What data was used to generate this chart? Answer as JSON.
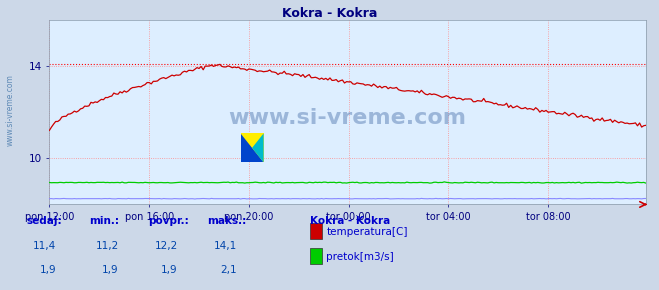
{
  "title": "Kokra - Kokra",
  "title_color": "#000080",
  "bg_color": "#ccd8e8",
  "plot_bg_color": "#ddeeff",
  "grid_color": "#ff8888",
  "text_color": "#0000aa",
  "watermark_text": "www.si-vreme.com",
  "watermark_color": "#6688bb",
  "xlabel_color": "#000080",
  "ylabel_color": "#000080",
  "xlim": [
    0,
    287
  ],
  "ylim_temp": [
    8.0,
    16.0
  ],
  "ylim_flow": [
    0.0,
    16.0
  ],
  "yticks_temp": [
    10,
    14
  ],
  "xtick_labels": [
    "pon 12:00",
    "pon 16:00",
    "pon 20:00",
    "tor 00:00",
    "tor 04:00",
    "tor 08:00"
  ],
  "xtick_positions": [
    0,
    48,
    96,
    144,
    192,
    240
  ],
  "temp_color": "#cc0000",
  "flow_color": "#00cc00",
  "height_color": "#8888ff",
  "max_line_color": "#ff0000",
  "max_temp": 14.1,
  "footer_label_color": "#0000cc",
  "footer_value_color": "#0044aa",
  "legend_title": "Kokra - Kokra",
  "legend_items": [
    "temperatura[C]",
    "pretok[m3/s]"
  ],
  "legend_colors": [
    "#cc0000",
    "#00cc00"
  ],
  "stats_headers": [
    "sedaj:",
    "min.:",
    "povpr.:",
    "maks.:"
  ],
  "stats_temp": [
    "11,4",
    "11,2",
    "12,2",
    "14,1"
  ],
  "stats_flow": [
    "1,9",
    "1,9",
    "1,9",
    "2,1"
  ]
}
